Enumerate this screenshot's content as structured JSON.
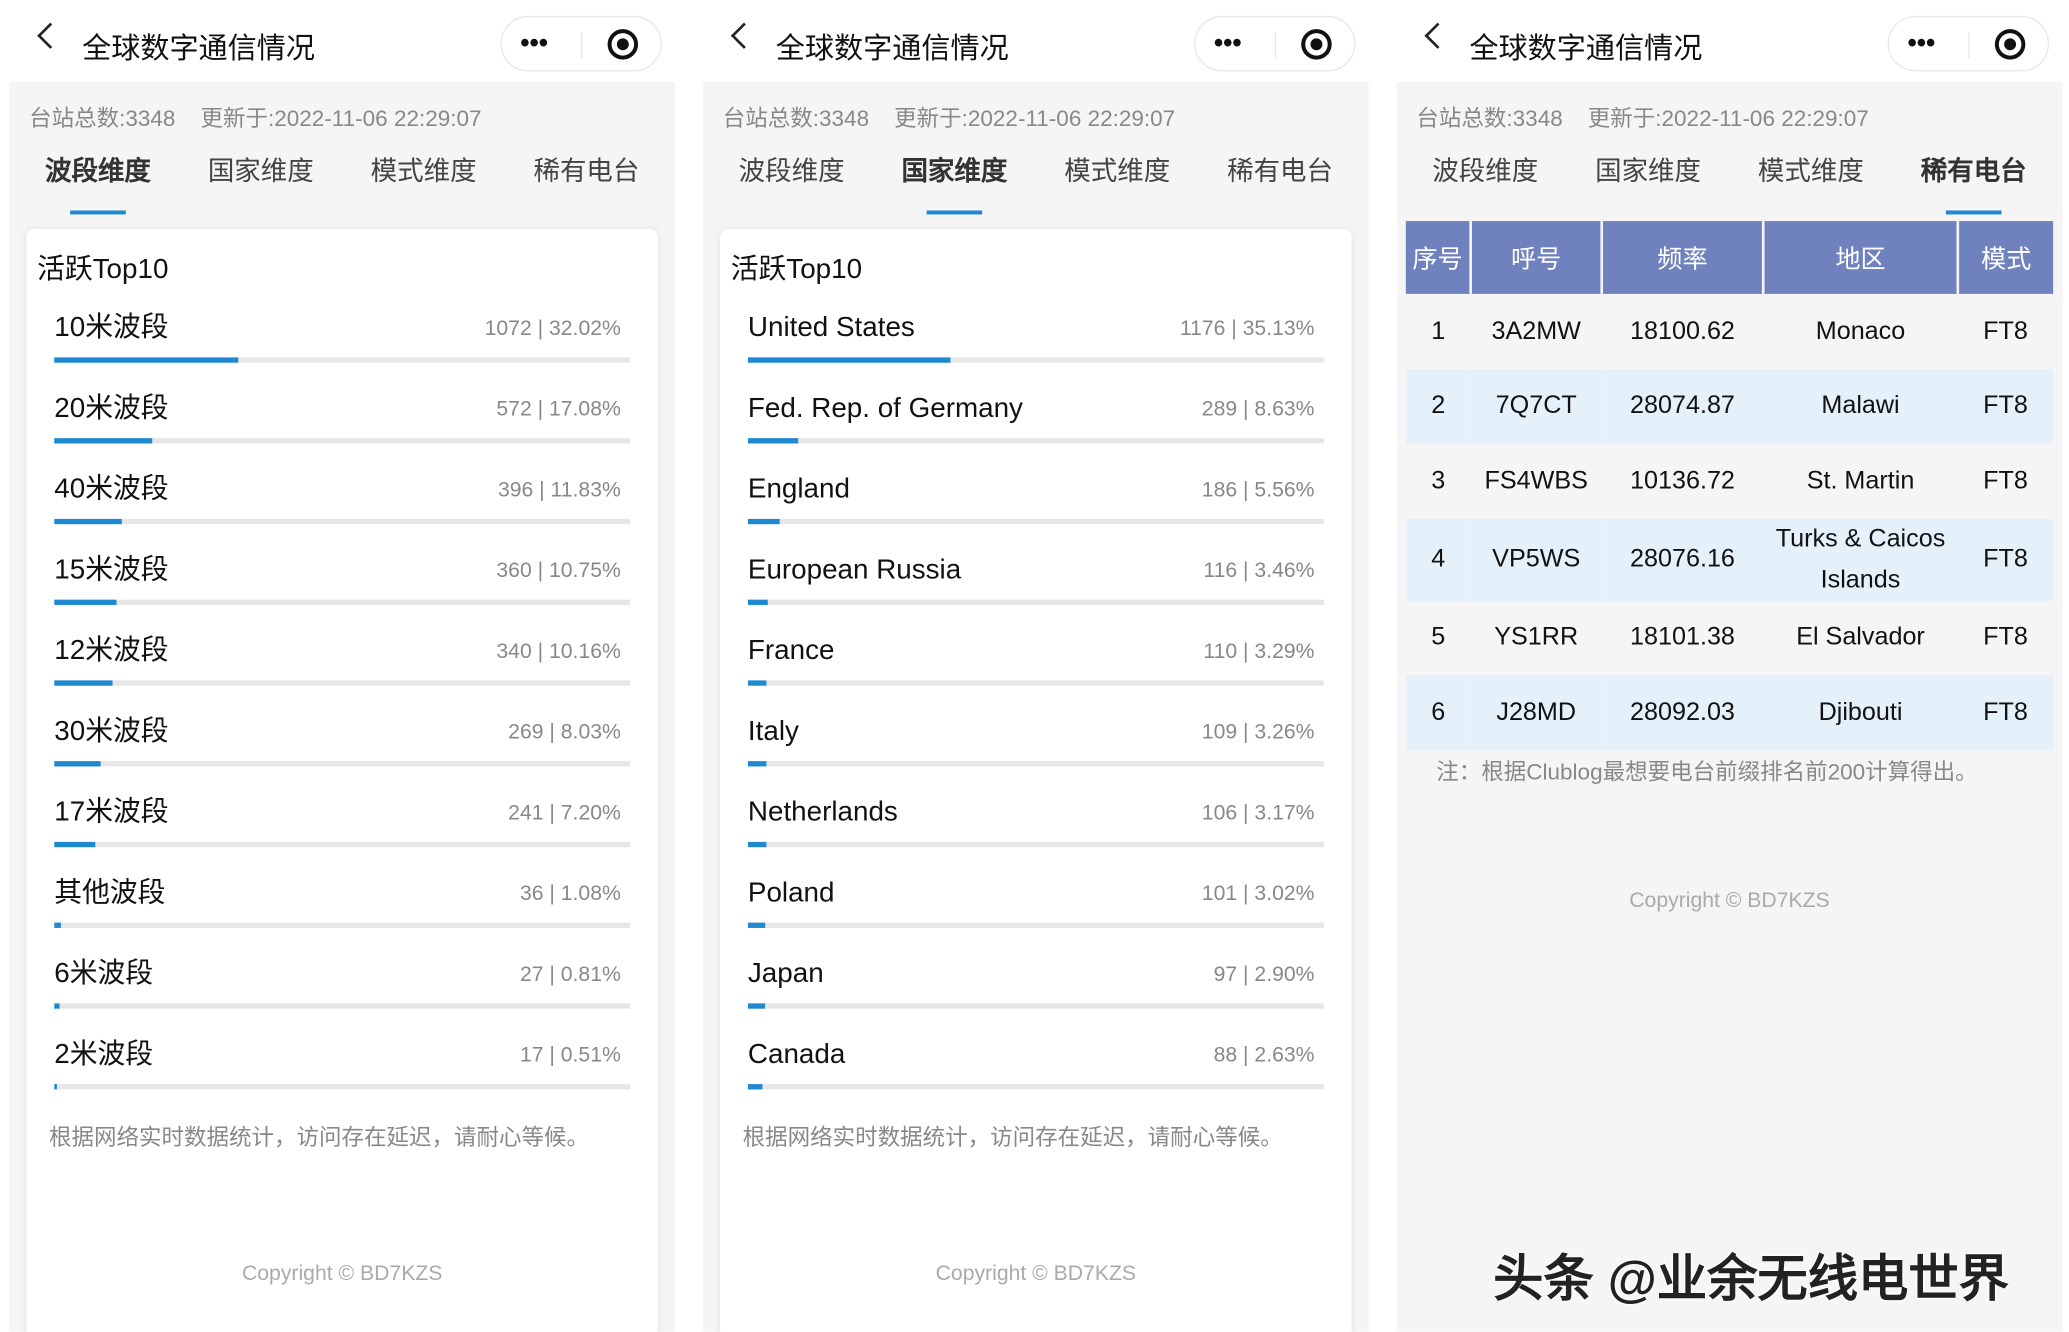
{
  "header": {
    "title": "全球数字通信情况",
    "more_icon": "more-dots-icon",
    "target_icon": "target-icon"
  },
  "info": {
    "stations": "台站总数:3348",
    "updated": "更新于:2022-11-06 22:29:07"
  },
  "tabs": [
    "波段维度",
    "国家维度",
    "模式维度",
    "稀有电台"
  ],
  "accent": "#1e88d0",
  "band_panel": {
    "active_tab": 0,
    "title": "活跃Top10",
    "items": [
      {
        "label": "10米波段",
        "value": "1072 | 32.02%",
        "percent": 32.02
      },
      {
        "label": "20米波段",
        "value": "572 | 17.08%",
        "percent": 17.08
      },
      {
        "label": "40米波段",
        "value": "396 | 11.83%",
        "percent": 11.83
      },
      {
        "label": "15米波段",
        "value": "360 | 10.75%",
        "percent": 10.75
      },
      {
        "label": "12米波段",
        "value": "340 | 10.16%",
        "percent": 10.16
      },
      {
        "label": "30米波段",
        "value": "269 | 8.03%",
        "percent": 8.03
      },
      {
        "label": "17米波段",
        "value": "241 | 7.20%",
        "percent": 7.2
      },
      {
        "label": "其他波段",
        "value": "36 | 1.08%",
        "percent": 1.08
      },
      {
        "label": "6米波段",
        "value": "27 | 0.81%",
        "percent": 0.81
      },
      {
        "label": "2米波段",
        "value": "17 | 0.51%",
        "percent": 0.51
      }
    ]
  },
  "country_panel": {
    "active_tab": 1,
    "title": "活跃Top10",
    "items": [
      {
        "label": "United States",
        "value": "1176 | 35.13%",
        "percent": 35.13
      },
      {
        "label": "Fed. Rep. of Germany",
        "value": "289 | 8.63%",
        "percent": 8.63
      },
      {
        "label": "England",
        "value": "186 | 5.56%",
        "percent": 5.56
      },
      {
        "label": "European Russia",
        "value": "116 | 3.46%",
        "percent": 3.46
      },
      {
        "label": "France",
        "value": "110 | 3.29%",
        "percent": 3.29
      },
      {
        "label": "Italy",
        "value": "109 | 3.26%",
        "percent": 3.26
      },
      {
        "label": "Netherlands",
        "value": "106 | 3.17%",
        "percent": 3.17
      },
      {
        "label": "Poland",
        "value": "101 | 3.02%",
        "percent": 3.02
      },
      {
        "label": "Japan",
        "value": "97 | 2.90%",
        "percent": 2.9
      },
      {
        "label": "Canada",
        "value": "88 | 2.63%",
        "percent": 2.63
      }
    ]
  },
  "note": "根据网络实时数据统计，访问存在延迟，请耐心等候。",
  "copyright": "Copyright © BD7KZS",
  "rare_panel": {
    "active_tab": 3,
    "columns": [
      "序号",
      "呼号",
      "频率",
      "地区",
      "模式"
    ],
    "rows": [
      [
        "1",
        "3A2MW",
        "18100.62",
        "Monaco",
        "FT8"
      ],
      [
        "2",
        "7Q7CT",
        "28074.87",
        "Malawi",
        "FT8"
      ],
      [
        "3",
        "FS4WBS",
        "10136.72",
        "St. Martin",
        "FT8"
      ],
      [
        "4",
        "VP5WS",
        "28076.16",
        "Turks & Caicos Islands",
        "FT8"
      ],
      [
        "5",
        "YS1RR",
        "18101.38",
        "El Salvador",
        "FT8"
      ],
      [
        "6",
        "J28MD",
        "28092.03",
        "Djibouti",
        "FT8"
      ]
    ],
    "note": "注：根据Clublog最想要电台前缀排名前200计算得出。",
    "header_color": "#6f82bd",
    "stripe_color": "#e5f1fa"
  },
  "watermark": "头条 @业余无线电世界"
}
